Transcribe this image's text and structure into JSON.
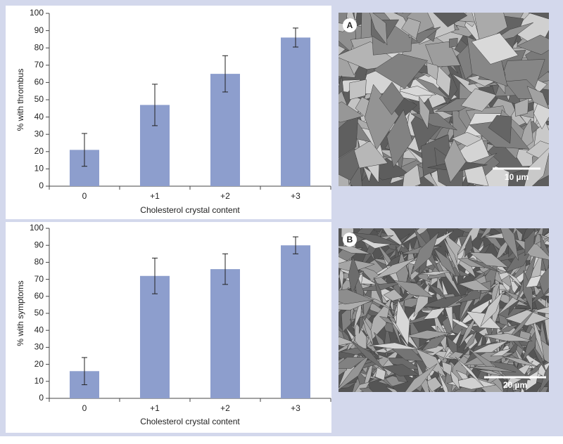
{
  "chart_data": [
    {
      "type": "bar",
      "y_label": "% with thrombus",
      "x_label": "Cholesterol crystal content",
      "categories": [
        "0",
        "+1",
        "+2",
        "+3"
      ],
      "values": [
        21,
        47,
        65,
        86
      ],
      "errors": [
        9.5,
        12,
        10.5,
        5.5
      ],
      "color": "#8d9ecd",
      "ylim": [
        0,
        100
      ],
      "yticks": [
        0,
        10,
        20,
        30,
        40,
        50,
        60,
        70,
        80,
        90,
        100
      ]
    },
    {
      "type": "bar",
      "y_label": "% with symptoms",
      "x_label": "Cholesterol crystal content",
      "categories": [
        "0",
        "+1",
        "+2",
        "+3"
      ],
      "values": [
        16,
        72,
        76,
        90
      ],
      "errors": [
        8,
        10.5,
        9,
        5
      ],
      "color": "#8d9ecd",
      "ylim": [
        0,
        100
      ],
      "yticks": [
        0,
        10,
        20,
        30,
        40,
        50,
        60,
        70,
        80,
        90,
        100
      ]
    }
  ],
  "images": [
    {
      "label": "A",
      "scale_bar": "10 µm"
    },
    {
      "label": "B",
      "scale_bar": "20 µm"
    }
  ]
}
